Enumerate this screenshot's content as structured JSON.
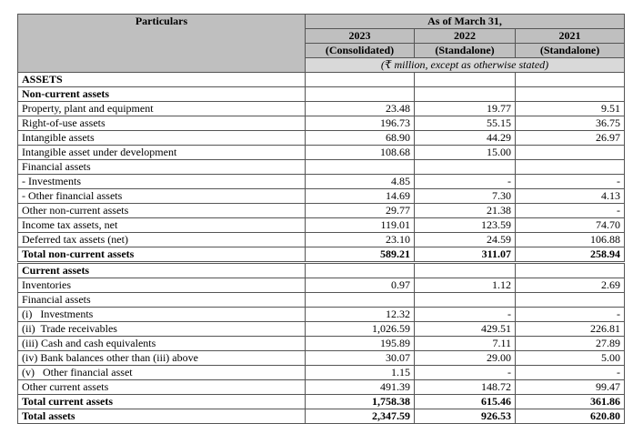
{
  "header": {
    "particulars": "Particulars",
    "as_of": "As of March 31,",
    "years": [
      "2023",
      "2022",
      "2021"
    ],
    "bases": [
      "(Consolidated)",
      "(Standalone)",
      "(Standalone)"
    ],
    "units": "(₹ million, except as otherwise stated)"
  },
  "rows": [
    {
      "label": "ASSETS",
      "v": [
        "",
        "",
        ""
      ],
      "bold": true
    },
    {
      "label": "Non-current assets",
      "v": [
        "",
        "",
        ""
      ],
      "bold": true
    },
    {
      "label": "Property, plant and equipment",
      "v": [
        "23.48",
        "19.77",
        "9.51"
      ]
    },
    {
      "label": "Right-of-use assets",
      "v": [
        "196.73",
        "55.15",
        "36.75"
      ]
    },
    {
      "label": "Intangible assets",
      "v": [
        "68.90",
        "44.29",
        "26.97"
      ]
    },
    {
      "label": "Intangible asset under development",
      "v": [
        "108.68",
        "15.00",
        ""
      ]
    },
    {
      "label": "Financial assets",
      "v": [
        "",
        "",
        ""
      ]
    },
    {
      "label": "- Investments",
      "v": [
        "4.85",
        "-",
        "-"
      ]
    },
    {
      "label": "- Other financial assets",
      "v": [
        "14.69",
        "7.30",
        "4.13"
      ]
    },
    {
      "label": "Other non-current assets",
      "v": [
        "29.77",
        "21.38",
        "-"
      ]
    },
    {
      "label": "Income tax assets, net",
      "v": [
        "119.01",
        "123.59",
        "74.70"
      ]
    },
    {
      "label": "Deferred tax assets (net)",
      "v": [
        "23.10",
        "24.59",
        "106.88"
      ]
    },
    {
      "label": "Total non-current assets",
      "v": [
        "589.21",
        "311.07",
        "258.94"
      ],
      "bold": true
    },
    {
      "label": "Current assets",
      "v": [
        "",
        "",
        ""
      ],
      "bold": true
    },
    {
      "label": "Inventories",
      "v": [
        "0.97",
        "1.12",
        "2.69"
      ]
    },
    {
      "label": "Financial assets",
      "v": [
        "",
        "",
        ""
      ]
    },
    {
      "label": "(i)   Investments",
      "v": [
        "12.32",
        "-",
        "-"
      ]
    },
    {
      "label": "(ii)  Trade receivables",
      "v": [
        "1,026.59",
        "429.51",
        "226.81"
      ]
    },
    {
      "label": "(iii) Cash and cash equivalents",
      "v": [
        "195.89",
        "7.11",
        "27.89"
      ]
    },
    {
      "label": "(iv) Bank balances other than (iii) above",
      "v": [
        "30.07",
        "29.00",
        "5.00"
      ]
    },
    {
      "label": "(v)   Other financial asset",
      "v": [
        "1.15",
        "-",
        "-"
      ]
    },
    {
      "label": "Other current assets",
      "v": [
        "491.39",
        "148.72",
        "99.47"
      ]
    },
    {
      "label": "Total current assets",
      "v": [
        "1,758.38",
        "615.46",
        "361.86"
      ],
      "bold": true
    },
    {
      "label": "Total assets",
      "v": [
        "2,347.59",
        "926.53",
        "620.80"
      ],
      "bold": true
    }
  ]
}
